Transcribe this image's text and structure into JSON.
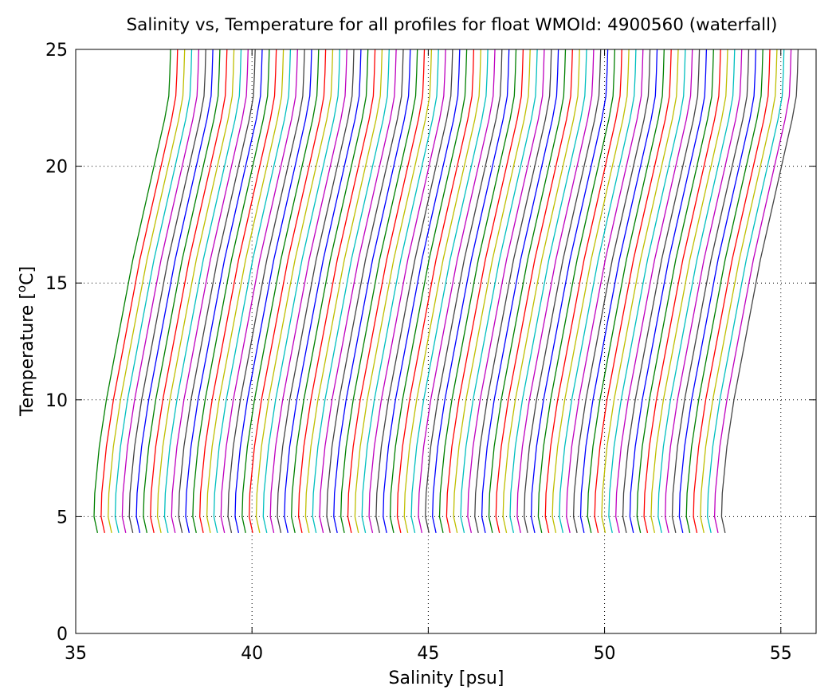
{
  "chart_data": {
    "type": "line",
    "title": "Salinity vs, Temperature for all profiles for float WMOId: 4900560 (waterfall)",
    "xlabel": "Salinity [psu]",
    "ylabel_main": "Temperature [",
    "ylabel_sup": "o",
    "ylabel_end": "C]",
    "xlim": [
      35,
      56
    ],
    "ylim": [
      0,
      25
    ],
    "xticks": [
      35,
      40,
      45,
      50,
      55
    ],
    "xtick_labels": [
      "35",
      "40",
      "45",
      "50",
      "55"
    ],
    "yticks": [
      0,
      5,
      10,
      15,
      20,
      25
    ],
    "ytick_labels": [
      "0",
      "5",
      "10",
      "15",
      "20",
      "25"
    ],
    "grid": true,
    "color_cycle": [
      "#008000",
      "#ff0000",
      "#bfbf00",
      "#00bfbf",
      "#bf00bf",
      "#444444",
      "#0000ff"
    ],
    "profile_shape": {
      "temperature": [
        4.3,
        5,
        6,
        8,
        10,
        12,
        14,
        16,
        18,
        20,
        22,
        23,
        24,
        25
      ],
      "salinity_offset": [
        0.1,
        0,
        0.02,
        0.15,
        0.35,
        0.6,
        0.85,
        1.1,
        1.4,
        1.7,
        2.0,
        2.12,
        2.15,
        2.17
      ]
    },
    "profiles_salinity_at_5C": [
      35.52,
      35.72,
      35.92,
      36.12,
      36.32,
      36.52,
      36.72,
      36.92,
      37.12,
      37.32,
      37.52,
      37.72,
      37.92,
      38.12,
      38.32,
      38.52,
      38.72,
      38.92,
      39.12,
      39.32,
      39.52,
      39.72,
      39.92,
      40.12,
      40.32,
      40.52,
      40.72,
      40.92,
      41.12,
      41.32,
      41.52,
      41.72,
      41.92,
      42.12,
      42.32,
      42.52,
      42.72,
      42.92,
      43.12,
      43.32,
      43.52,
      43.72,
      43.92,
      44.12,
      44.32,
      44.52,
      44.72,
      44.92,
      45.12,
      45.32,
      45.52,
      45.72,
      45.92,
      46.12,
      46.32,
      46.52,
      46.72,
      46.92,
      47.12,
      47.32,
      47.52,
      47.72,
      47.92,
      48.12,
      48.32,
      48.52,
      48.72,
      48.92,
      49.12,
      49.32,
      49.52,
      49.72,
      49.92,
      50.12,
      50.32,
      50.52,
      50.72,
      50.92,
      51.12,
      51.32,
      51.52,
      51.72,
      51.92,
      52.12,
      52.32,
      52.52,
      52.72,
      52.92,
      53.12,
      53.32
    ]
  }
}
